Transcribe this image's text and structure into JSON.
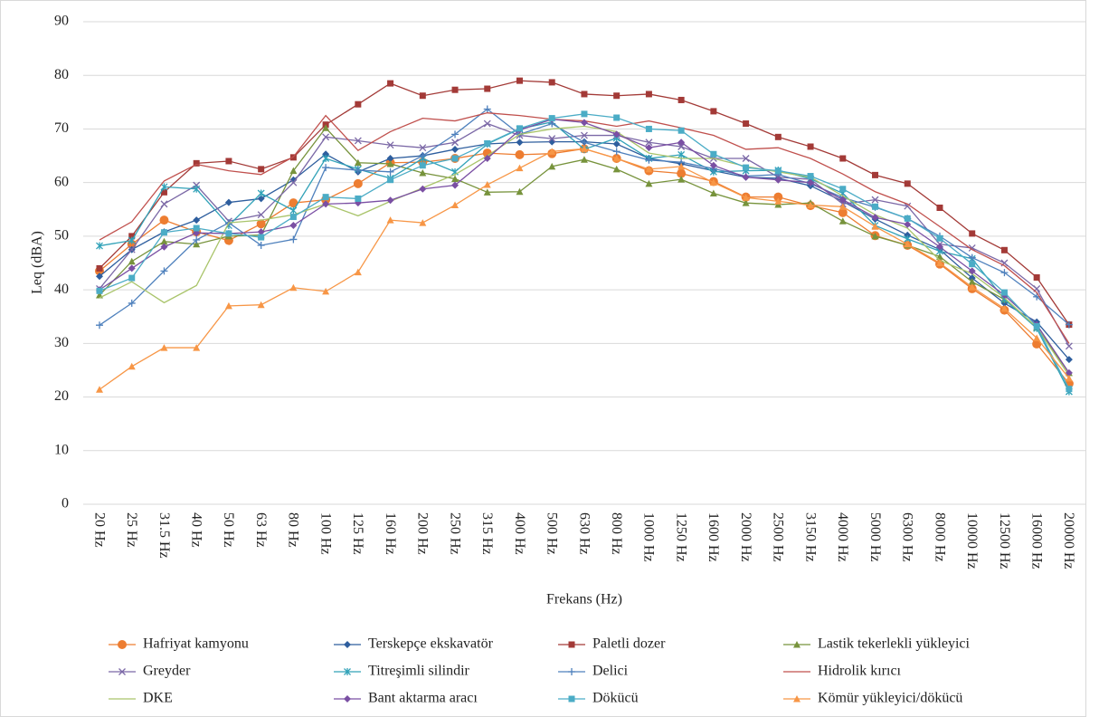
{
  "chart_data": {
    "type": "line",
    "x_label": "Frekans (Hz)",
    "y_label": "Leq (dBA)",
    "categories": [
      "20 Hz",
      "25 Hz",
      "31.5 Hz",
      "40 Hz",
      "50 Hz",
      "63 Hz",
      "80 Hz",
      "100 Hz",
      "125 Hz",
      "160 Hz",
      "200 Hz",
      "250 Hz",
      "315 Hz",
      "400 Hz",
      "500 Hz",
      "630 Hz",
      "800 Hz",
      "1000 Hz",
      "1250 Hz",
      "1600 Hz",
      "2000 Hz",
      "2500 Hz",
      "3150 Hz",
      "4000 Hz",
      "5000 Hz",
      "6300 Hz",
      "8000 Hz",
      "10000 Hz",
      "12500 Hz",
      "16000 Hz",
      "20000 Hz"
    ],
    "ylim": [
      0,
      90
    ],
    "yticks": [
      0,
      10,
      20,
      30,
      40,
      50,
      60,
      70,
      80,
      90
    ],
    "grid": true,
    "legend": "bottom",
    "series": [
      {
        "name": "Hafriyat kamyonu",
        "color": "#ED7D31",
        "marker": "circle",
        "values": [
          43.5,
          48.5,
          53,
          50.8,
          49.2,
          52.3,
          56.2,
          56.8,
          59.8,
          63.7,
          63.8,
          64.5,
          65.5,
          65.2,
          65.4,
          66.3,
          64.5,
          62.2,
          61.7,
          60.2,
          57.3,
          57.3,
          55.7,
          54.4,
          50.1,
          48.3,
          44.8,
          40.2,
          36.2,
          29.9,
          22.5
        ]
      },
      {
        "name": "Terskepçe ekskavatör",
        "color": "#2E5E9E",
        "marker": "diamond",
        "values": [
          42.5,
          47.5,
          50.8,
          53,
          56.3,
          57,
          60.5,
          65.3,
          62,
          64.5,
          65,
          66.2,
          67.2,
          67.5,
          67.6,
          67.6,
          67.2,
          64.5,
          63.5,
          62.2,
          61,
          60.8,
          59.4,
          56.5,
          53.2,
          50.2,
          47.5,
          42.2,
          37.5,
          34,
          27
        ]
      },
      {
        "name": "Paletli dozer",
        "color": "#A33A37",
        "marker": "square",
        "values": [
          44,
          50,
          58.2,
          63.6,
          64,
          62.5,
          64.7,
          70.8,
          74.6,
          78.5,
          76.2,
          77.3,
          77.5,
          79,
          78.7,
          76.5,
          76.2,
          76.5,
          75.4,
          73.3,
          71,
          68.5,
          66.7,
          64.5,
          61.4,
          59.8,
          55.3,
          50.5,
          47.4,
          42.3,
          33.5
        ]
      },
      {
        "name": "Lastik tekerlekli yükleyici",
        "color": "#77933C",
        "marker": "triangle",
        "values": [
          39,
          45.3,
          49,
          48.5,
          50,
          50.2,
          62.2,
          70.2,
          63.7,
          63.5,
          61.8,
          60.7,
          58.2,
          58.3,
          63,
          64.3,
          62.5,
          59.8,
          60.6,
          58,
          56.2,
          55.9,
          56.2,
          52.8,
          50,
          48.3,
          46.2,
          41.5,
          38.2,
          33,
          24.5
        ]
      },
      {
        "name": "Greyder",
        "color": "#7B68A6",
        "marker": "x",
        "values": [
          40.2,
          47.5,
          56,
          59.5,
          52.8,
          54,
          60,
          68.5,
          67.8,
          67,
          66.5,
          67.5,
          71,
          68.8,
          68.2,
          68.8,
          68.8,
          67.5,
          66.7,
          64.5,
          64.5,
          61,
          60.6,
          56,
          56.8,
          55.6,
          48.5,
          47.8,
          45,
          40.2,
          29.5
        ]
      },
      {
        "name": "Titreşimli silindir",
        "color": "#31A2B8",
        "marker": "star",
        "values": [
          48.2,
          49.2,
          59.2,
          58.8,
          52,
          58,
          54.8,
          64.5,
          62.5,
          60.8,
          64.5,
          62,
          67.2,
          70,
          71.3,
          66.2,
          68.3,
          64.5,
          65.2,
          62,
          62.2,
          62.3,
          60.7,
          58,
          52,
          49.5,
          47.2,
          45.8,
          38.2,
          32.8,
          21
        ]
      },
      {
        "name": "Delici",
        "color": "#4F81BD",
        "marker": "plus",
        "values": [
          33.4,
          37.5,
          43.5,
          49.3,
          52.5,
          48.3,
          49.4,
          62.8,
          62.3,
          62,
          65,
          69,
          73.7,
          69,
          71,
          67.5,
          65.8,
          64.2,
          63.8,
          62.6,
          61.2,
          61.5,
          59.8,
          57.2,
          55.4,
          53.3,
          50,
          46,
          43.2,
          38.7,
          33.5
        ]
      },
      {
        "name": "Hidrolik kırıcı",
        "color": "#C0504D",
        "marker": "none",
        "values": [
          49.3,
          52.7,
          60.3,
          63.4,
          62.2,
          61.5,
          64.8,
          72.5,
          66,
          69.5,
          72,
          71.5,
          73,
          72.5,
          71.8,
          71.5,
          70.5,
          71.5,
          70.2,
          68.8,
          66.2,
          66.5,
          64.5,
          61.6,
          58.3,
          56,
          51.8,
          47.5,
          44.5,
          39.5,
          30
        ]
      },
      {
        "name": "DKE",
        "color": "#A9C46A",
        "marker": "none",
        "values": [
          38.5,
          41.5,
          37.6,
          40.8,
          52.5,
          53,
          54,
          56,
          53.8,
          56.5,
          59,
          61.5,
          65,
          69,
          70,
          70.5,
          69.5,
          65.5,
          64.5,
          64.5,
          63,
          62,
          61,
          57.5,
          54,
          51.5,
          45.5,
          43,
          38.5,
          33,
          24
        ]
      },
      {
        "name": "Bant aktarma aracı",
        "color": "#7A4FA3",
        "marker": "diamond",
        "values": [
          40,
          44,
          48,
          50.6,
          50.5,
          50.8,
          52,
          56,
          56.2,
          56.7,
          58.8,
          59.5,
          64.5,
          69.8,
          71.8,
          71.2,
          69,
          66.5,
          67.5,
          63.2,
          61,
          60.5,
          60,
          56.8,
          53.5,
          52.2,
          48,
          43.5,
          39,
          33.5,
          24.5
        ]
      },
      {
        "name": "Dökücü",
        "color": "#4BACC6",
        "marker": "square",
        "values": [
          39.8,
          42.2,
          50.7,
          51.5,
          50.5,
          49.8,
          53.6,
          57.3,
          57,
          60.5,
          63.2,
          64.5,
          67.3,
          70.1,
          72,
          72.8,
          72.1,
          70,
          69.7,
          65.3,
          62.8,
          62.2,
          61.2,
          58.8,
          55.5,
          53.3,
          49.6,
          44.8,
          39.5,
          33.2,
          21.5
        ]
      },
      {
        "name": "Kömür yükleyici/dökücü",
        "color": "#F79646",
        "marker": "triangle",
        "values": [
          21.4,
          25.7,
          29.2,
          29.2,
          37,
          37.2,
          40.4,
          39.7,
          43.3,
          53,
          52.5,
          55.8,
          59.6,
          62.7,
          65.8,
          66.3,
          64.5,
          62.5,
          63,
          60,
          57.2,
          56.5,
          55.8,
          55.5,
          51.8,
          48.5,
          45,
          40.5,
          36.5,
          31,
          23.5
        ]
      }
    ]
  }
}
